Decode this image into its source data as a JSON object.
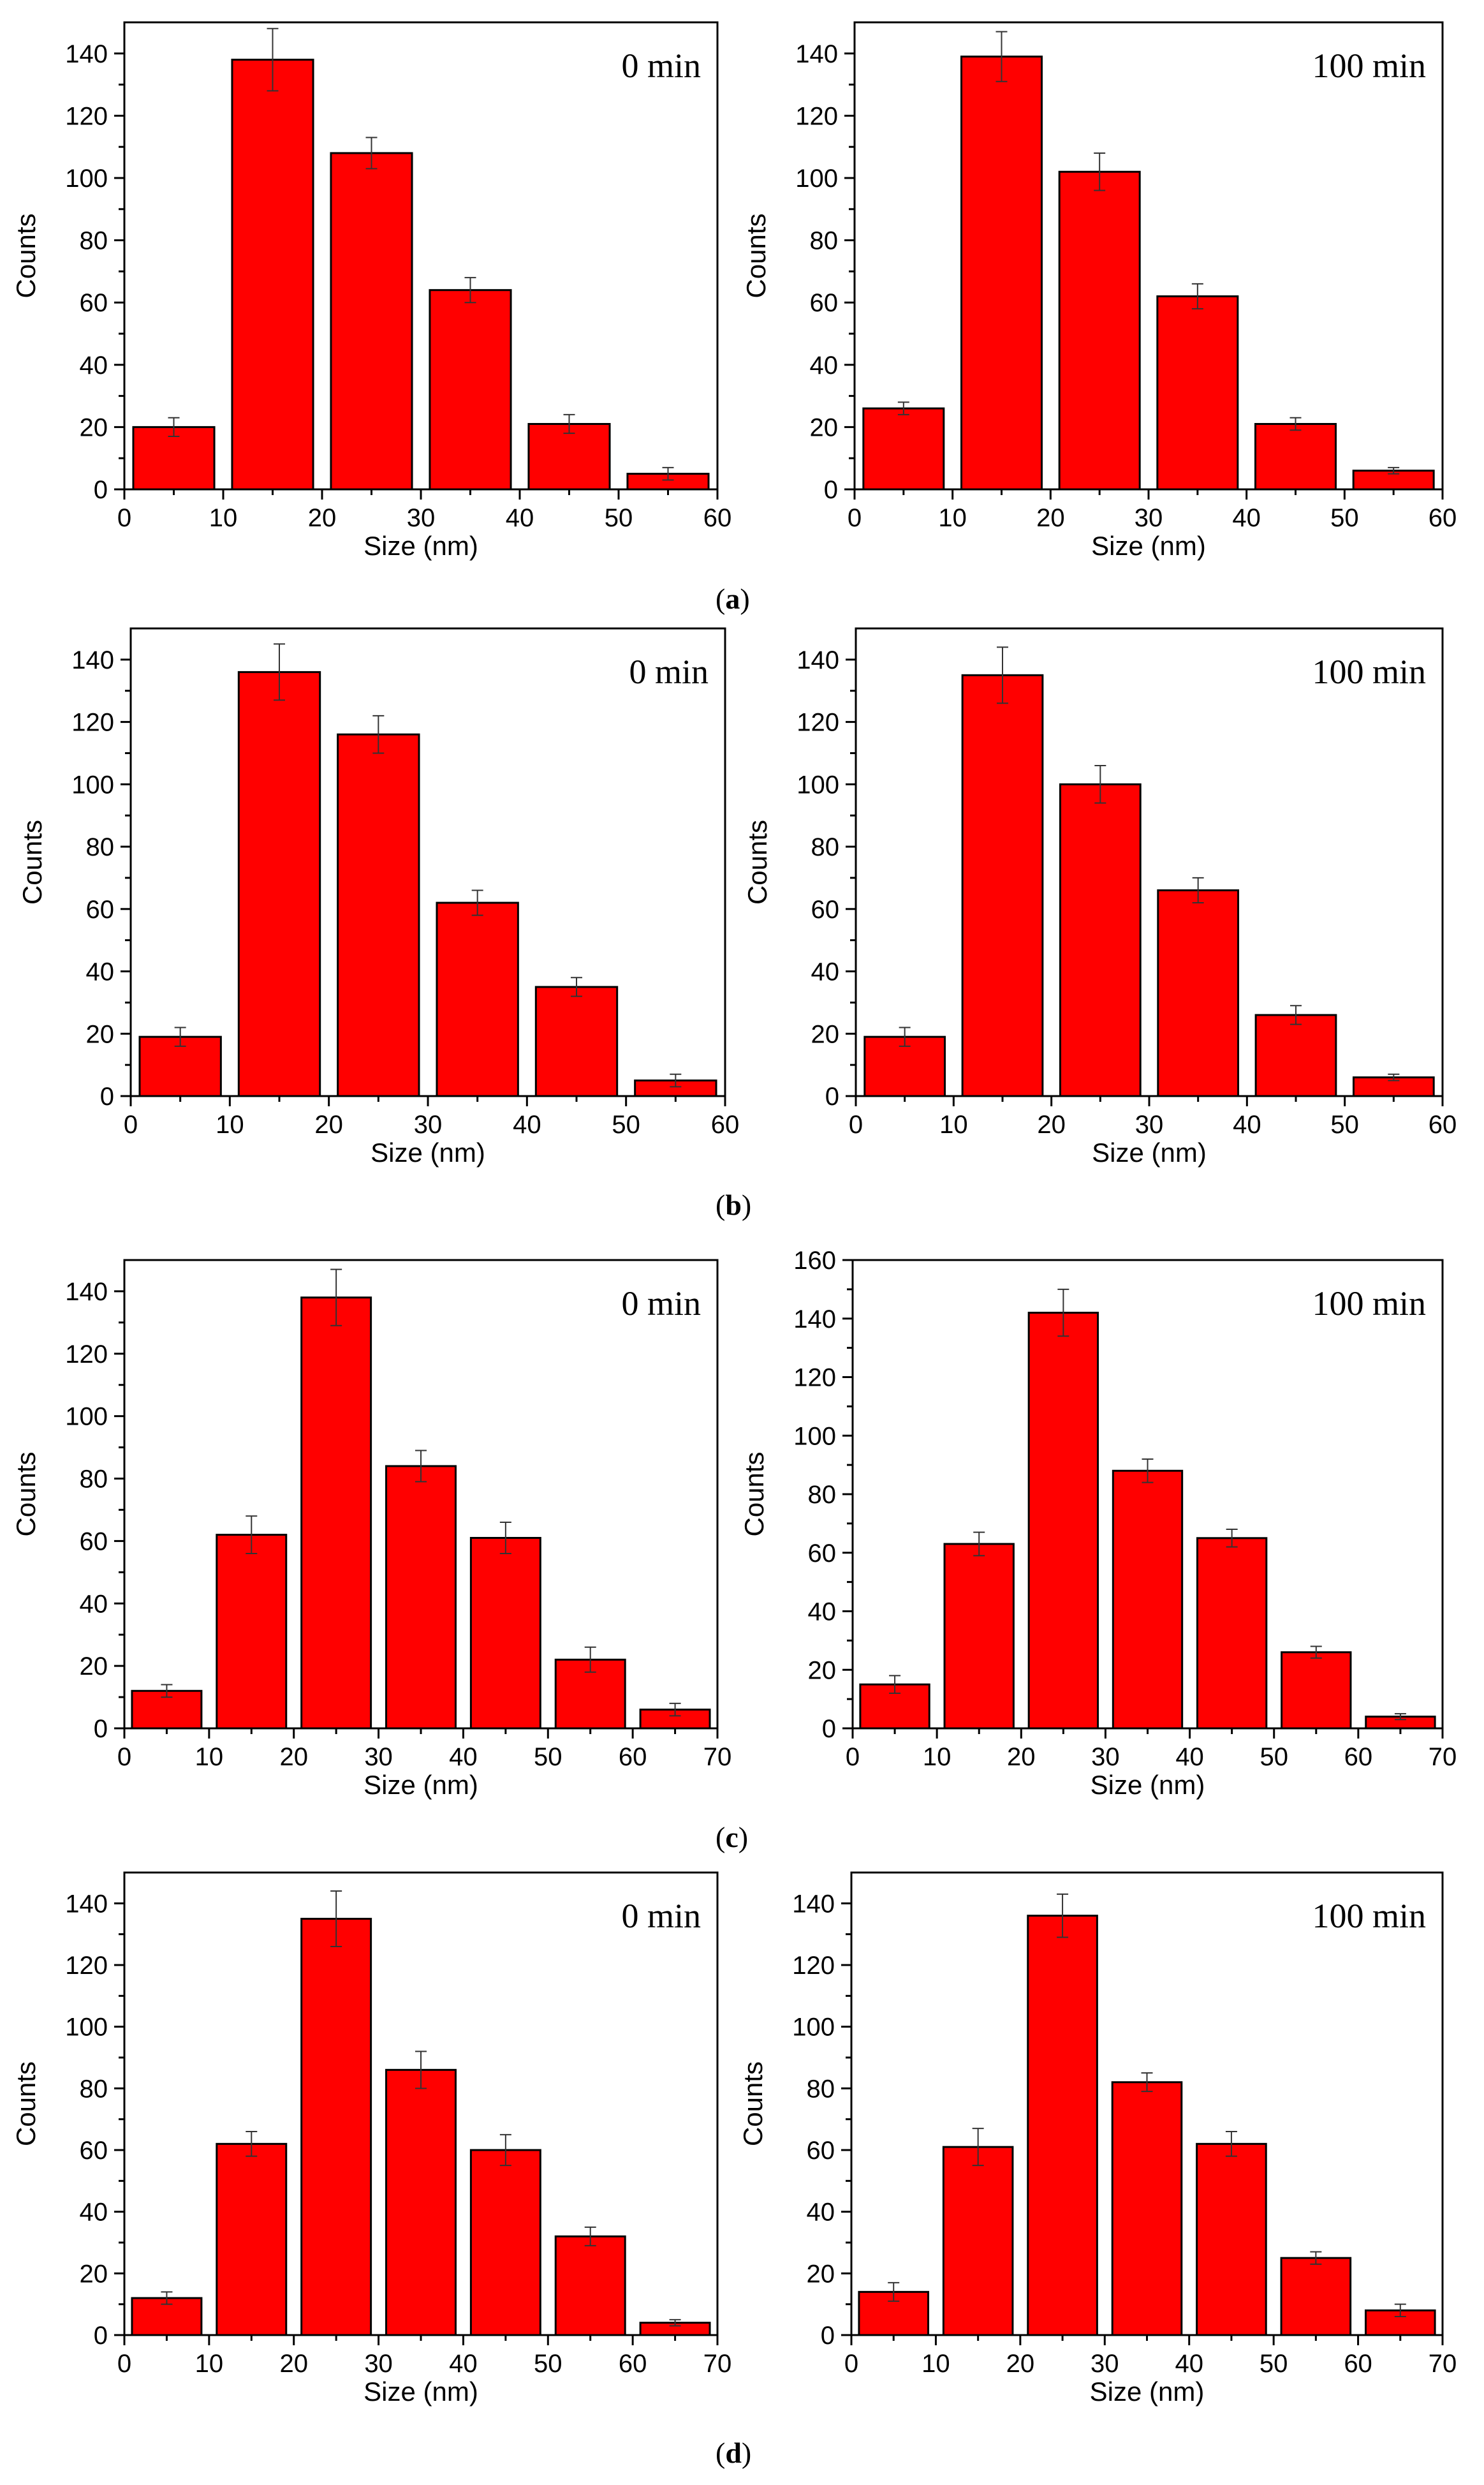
{
  "axis_label_x": "Size (nm)",
  "axis_label_y": "Counts",
  "bar_color": "#ff0000",
  "captions": [
    "a",
    "b",
    "c",
    "d"
  ],
  "chart_data": [
    {
      "type": "bar",
      "panel": "a",
      "title": "0 min",
      "xlabel": "Size (nm)",
      "ylabel": "Counts",
      "xlim": [
        0,
        60
      ],
      "ylim": [
        0,
        150
      ],
      "xticks": [
        0,
        10,
        20,
        30,
        40,
        50,
        60
      ],
      "yticks": [
        0,
        20,
        40,
        60,
        80,
        100,
        120,
        140
      ],
      "bins": [
        5,
        15,
        25,
        35,
        45,
        55
      ],
      "values": [
        20,
        138,
        108,
        64,
        21,
        5
      ],
      "errors": [
        3,
        10,
        5,
        4,
        3,
        2
      ]
    },
    {
      "type": "bar",
      "panel": "a",
      "title": "100 min",
      "xlabel": "Size (nm)",
      "ylabel": "Counts",
      "xlim": [
        0,
        60
      ],
      "ylim": [
        0,
        150
      ],
      "xticks": [
        0,
        10,
        20,
        30,
        40,
        50,
        60
      ],
      "yticks": [
        0,
        20,
        40,
        60,
        80,
        100,
        120,
        140
      ],
      "bins": [
        5,
        15,
        25,
        35,
        45,
        55
      ],
      "values": [
        26,
        139,
        102,
        62,
        21,
        6
      ],
      "errors": [
        2,
        8,
        6,
        4,
        2,
        1
      ]
    },
    {
      "type": "bar",
      "panel": "b",
      "title": "0 min",
      "xlabel": "Size (nm)",
      "ylabel": "Counts",
      "xlim": [
        0,
        60
      ],
      "ylim": [
        0,
        150
      ],
      "xticks": [
        0,
        10,
        20,
        30,
        40,
        50,
        60
      ],
      "yticks": [
        0,
        20,
        40,
        60,
        80,
        100,
        120,
        140
      ],
      "bins": [
        5,
        15,
        25,
        35,
        45,
        55
      ],
      "values": [
        19,
        136,
        116,
        62,
        35,
        5
      ],
      "errors": [
        3,
        9,
        6,
        4,
        3,
        2
      ]
    },
    {
      "type": "bar",
      "panel": "b",
      "title": "100 min",
      "xlabel": "Size (nm)",
      "ylabel": "Counts",
      "xlim": [
        0,
        60
      ],
      "ylim": [
        0,
        150
      ],
      "xticks": [
        0,
        10,
        20,
        30,
        40,
        50,
        60
      ],
      "yticks": [
        0,
        20,
        40,
        60,
        80,
        100,
        120,
        140
      ],
      "bins": [
        5,
        15,
        25,
        35,
        45,
        55
      ],
      "values": [
        19,
        135,
        100,
        66,
        26,
        6
      ],
      "errors": [
        3,
        9,
        6,
        4,
        3,
        1
      ]
    },
    {
      "type": "bar",
      "panel": "c",
      "title": "0 min",
      "xlabel": "Size (nm)",
      "ylabel": "Counts",
      "xlim": [
        0,
        70
      ],
      "ylim": [
        0,
        150
      ],
      "xticks": [
        0,
        10,
        20,
        30,
        40,
        50,
        60,
        70
      ],
      "yticks": [
        0,
        20,
        40,
        60,
        80,
        100,
        120,
        140
      ],
      "bins": [
        5,
        15,
        25,
        35,
        45,
        55,
        65
      ],
      "values": [
        12,
        62,
        138,
        84,
        61,
        22,
        6
      ],
      "errors": [
        2,
        6,
        9,
        5,
        5,
        4,
        2
      ]
    },
    {
      "type": "bar",
      "panel": "c",
      "title": "100 min",
      "xlabel": "Size (nm)",
      "ylabel": "Counts",
      "xlim": [
        0,
        70
      ],
      "ylim": [
        0,
        160
      ],
      "xticks": [
        0,
        10,
        20,
        30,
        40,
        50,
        60,
        70
      ],
      "yticks": [
        0,
        20,
        40,
        60,
        80,
        100,
        120,
        140,
        160
      ],
      "bins": [
        5,
        15,
        25,
        35,
        45,
        55,
        65
      ],
      "values": [
        15,
        63,
        142,
        88,
        65,
        26,
        4
      ],
      "errors": [
        3,
        4,
        8,
        4,
        3,
        2,
        1
      ]
    },
    {
      "type": "bar",
      "panel": "d",
      "title": "0 min",
      "xlabel": "Size (nm)",
      "ylabel": "Counts",
      "xlim": [
        0,
        70
      ],
      "ylim": [
        0,
        150
      ],
      "xticks": [
        0,
        10,
        20,
        30,
        40,
        50,
        60,
        70
      ],
      "yticks": [
        0,
        20,
        40,
        60,
        80,
        100,
        120,
        140
      ],
      "bins": [
        5,
        15,
        25,
        35,
        45,
        55,
        65
      ],
      "values": [
        12,
        62,
        135,
        86,
        60,
        32,
        4
      ],
      "errors": [
        2,
        4,
        9,
        6,
        5,
        3,
        1
      ]
    },
    {
      "type": "bar",
      "panel": "d",
      "title": "100 min",
      "xlabel": "Size (nm)",
      "ylabel": "Counts",
      "xlim": [
        0,
        70
      ],
      "ylim": [
        0,
        150
      ],
      "xticks": [
        0,
        10,
        20,
        30,
        40,
        50,
        60,
        70
      ],
      "yticks": [
        0,
        20,
        40,
        60,
        80,
        100,
        120,
        140
      ],
      "bins": [
        5,
        15,
        25,
        35,
        45,
        55,
        65
      ],
      "values": [
        14,
        61,
        136,
        82,
        62,
        25,
        8
      ],
      "errors": [
        3,
        6,
        7,
        3,
        4,
        2,
        2
      ]
    }
  ]
}
